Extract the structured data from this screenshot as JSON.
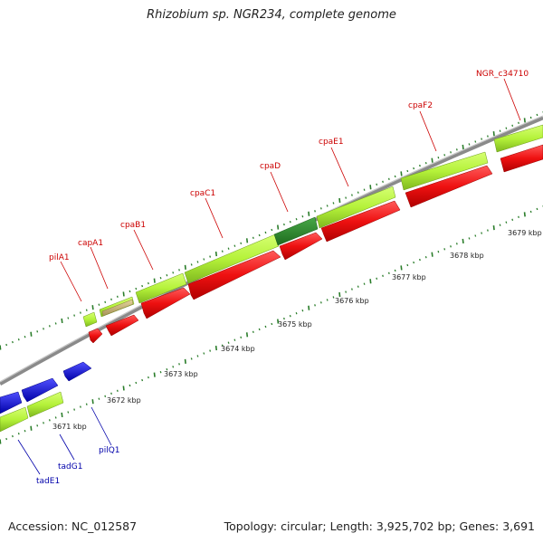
{
  "title": "Rhizobium sp. NGR234, complete genome",
  "footer": {
    "accession": "Accession: NC_012587",
    "summary": "Topology: circular; Length: 3,925,702 bp; Genes: 3,691"
  },
  "colors": {
    "forward_gene_label": "#cc0000",
    "reverse_gene_label": "#0000aa",
    "cds_light_green": "#b5f23a",
    "cds_dark_green": "#2e8b2e",
    "cds_tan": "#c8b46e",
    "cds_red": "#ee1111",
    "cds_blue": "#1111dd",
    "backbone": "#888888",
    "tick": "#2a7d2a"
  },
  "ruler": {
    "unit": "kbp",
    "labels": [
      "3671 kbp",
      "3672 kbp",
      "3673 kbp",
      "3674 kbp",
      "3675 kbp",
      "3676 kbp",
      "3677 kbp",
      "3678 kbp",
      "3679 kbp"
    ]
  },
  "forward_genes": [
    {
      "name": "pilA1"
    },
    {
      "name": "capA1"
    },
    {
      "name": "cpaB1"
    },
    {
      "name": "cpaC1"
    },
    {
      "name": "cpaD"
    },
    {
      "name": "cpaE1"
    },
    {
      "name": "cpaF2"
    },
    {
      "name": "NGR_c34710"
    }
  ],
  "reverse_genes": [
    {
      "name": "pilQ1"
    },
    {
      "name": "tadG1"
    },
    {
      "name": "tadE1"
    }
  ]
}
